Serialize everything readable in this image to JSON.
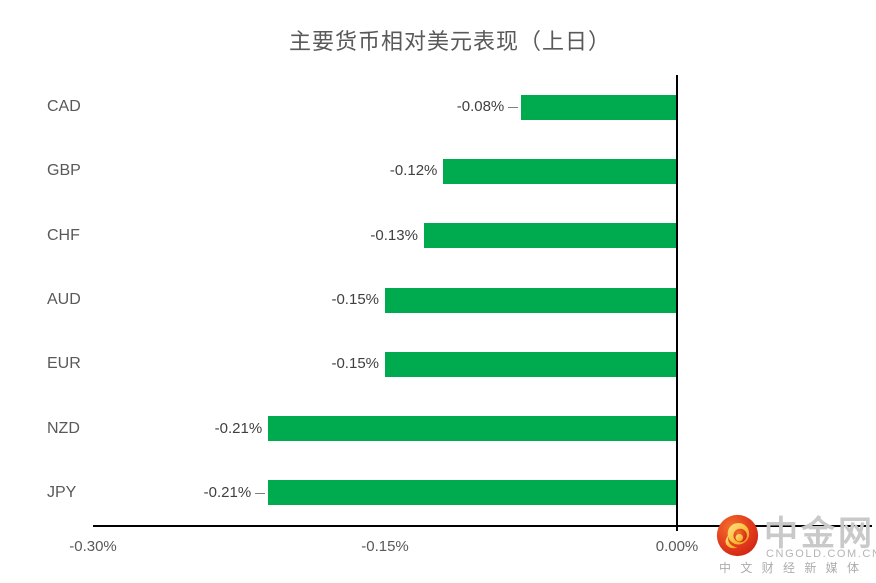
{
  "chart_data": {
    "type": "bar",
    "orientation": "horizontal",
    "title": "主要货币相对美元表现（上日）",
    "categories": [
      "CAD",
      "GBP",
      "CHF",
      "AUD",
      "EUR",
      "NZD",
      "JPY"
    ],
    "values": [
      -0.08,
      -0.12,
      -0.13,
      -0.15,
      -0.15,
      -0.21,
      -0.21
    ],
    "value_labels": [
      "-0.08%",
      "-0.12%",
      "-0.13%",
      "-0.15%",
      "-0.15%",
      "-0.21%",
      "-0.21%"
    ],
    "xlabel": "",
    "ylabel": "",
    "xlim": [
      -0.3,
      0.0
    ],
    "x_ticks": [
      "-0.30%",
      "-0.15%",
      "0.00%"
    ],
    "x_tick_values": [
      -0.3,
      -0.15,
      0.0
    ],
    "grid": false,
    "legend": false,
    "bar_color": "#00AB50",
    "label_color": "#595959",
    "value_label_color": "#404040",
    "axis_color": "#000000",
    "leader_lines": [
      "CAD",
      "JPY"
    ]
  },
  "watermark": {
    "name": "中金网",
    "domain": "CNGOLD.COM.CN",
    "tagline": "中 文 财 经 新 媒 体",
    "icon": "cngold-cloud-icon",
    "icon_circle_color": "#DD2B18",
    "icon_swirl_color": "#F6B21D"
  }
}
